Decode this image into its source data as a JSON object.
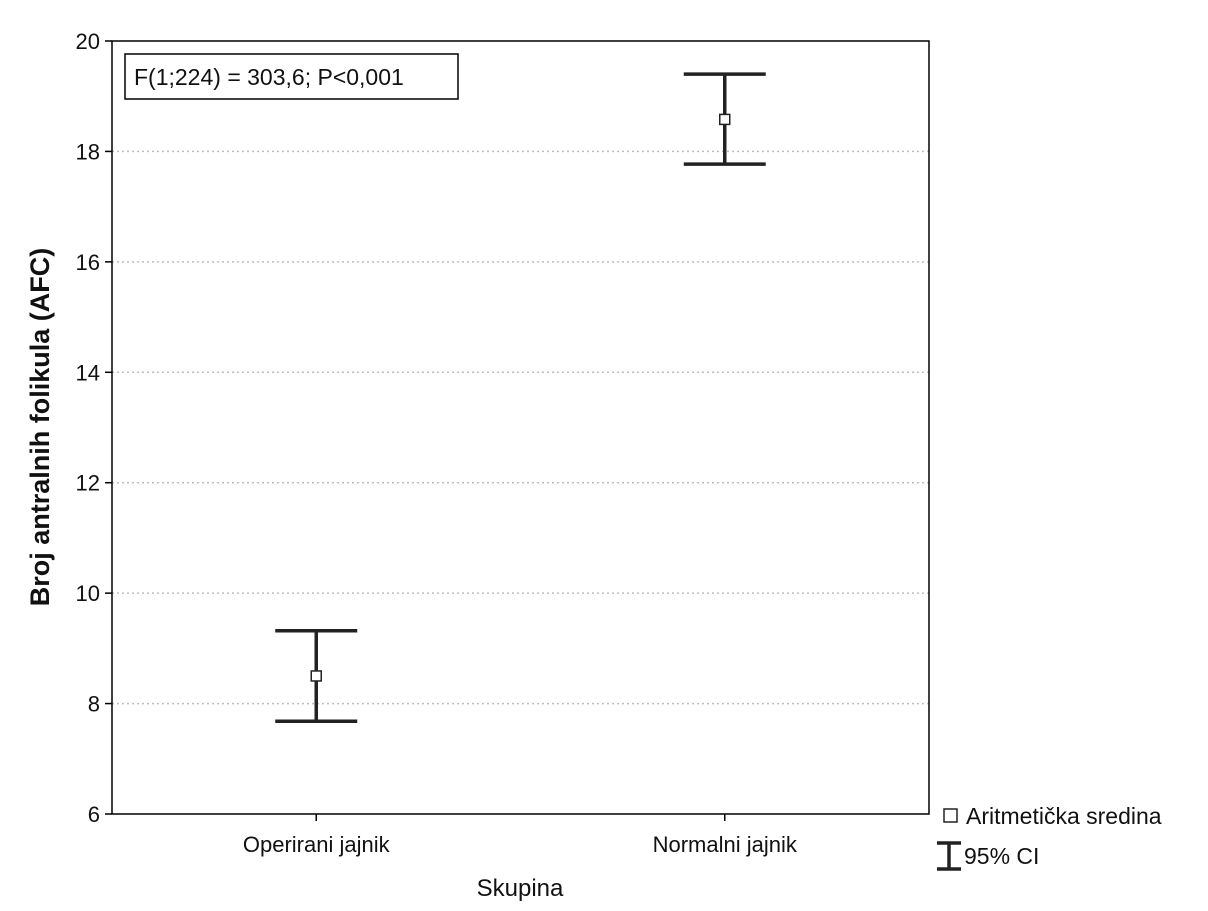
{
  "chart_data": {
    "type": "scatter",
    "title": "",
    "xlabel": "Skupina",
    "ylabel": "Broj antralnih folikula (AFC)",
    "categories": [
      "Operirani jajnik",
      "Normalni jajnik"
    ],
    "series": [
      {
        "name": "Aritmetička sredina",
        "values": [
          8.5,
          18.58
        ],
        "ci_lower": [
          7.68,
          17.77
        ],
        "ci_upper": [
          9.32,
          19.4
        ]
      }
    ],
    "ylim": [
      6,
      20
    ],
    "yticks": [
      "6",
      "8",
      "10",
      "12",
      "14",
      "16",
      "18",
      "20"
    ],
    "grid": "horizontal dotted",
    "annotation": "F(1;224) = 303,6; P<0,001",
    "legend": {
      "position": "bottom-right outside",
      "mean_label": "Aritmetička sredina",
      "ci_label": "95% CI"
    },
    "colors": {
      "marks": "#222222",
      "grid": "#bdbdbd",
      "marker_fill": "#ffffff"
    }
  }
}
